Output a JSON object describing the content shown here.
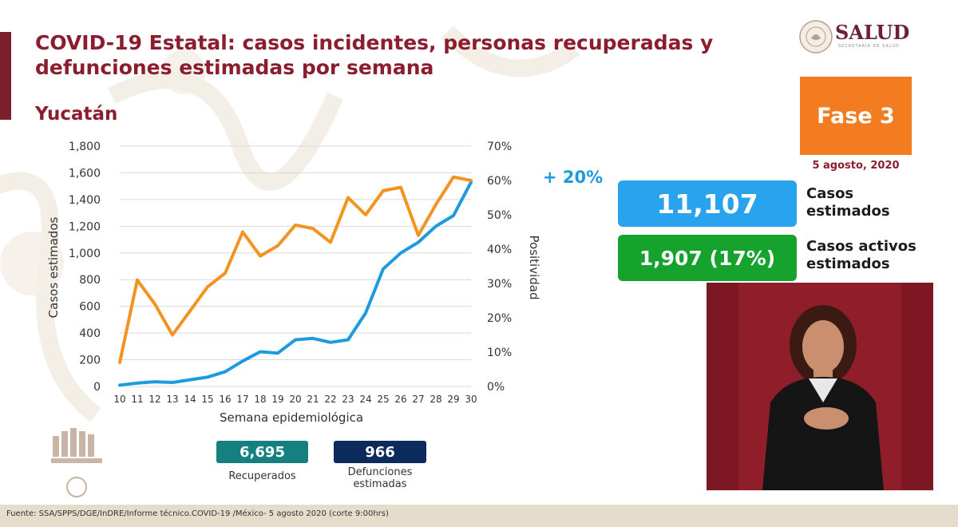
{
  "header": {
    "title": "COVID-19 Estatal: casos incidentes, personas recuperadas y defunciones estimadas por semana",
    "state": "Yucatán"
  },
  "logo": {
    "text": "SALUD",
    "subtext": "SECRETARÍA DE SALUD"
  },
  "phase": {
    "label": "Fase 3",
    "date": "5 agosto, 2020"
  },
  "change": "+ 20%",
  "stats": {
    "casos_value": "11,107",
    "casos_label_1": "Casos",
    "casos_label_2": "estimados",
    "activos_value": "1,907 (17%)",
    "activos_label_1": "Casos activos",
    "activos_label_2": "estimados"
  },
  "chips": {
    "recuperados_value": "6,695",
    "recuperados_label": "Recuperados",
    "defunciones_value": "966",
    "defunciones_label_1": "Defunciones",
    "defunciones_label_2": "estimadas"
  },
  "footer": "Fuente: SSA/SPPS/DGE/InDRE/Informe técnico.COVID-19 /México- 5 agosto 2020 (corte 9:00hrs)",
  "colors": {
    "title": "#8b1e2e",
    "cases_line": "#1e9be0",
    "positivity_line": "#f39322",
    "phase": "#f47c20",
    "casos_box": "#29a3ee",
    "activos_box": "#15a32e",
    "recuperados_chip": "#14807f",
    "defunciones_chip": "#0d2a5c"
  },
  "chart_data": {
    "type": "line",
    "xlabel": "Semana epidemiológica",
    "ylabel": "Casos estimados",
    "y2label": "Positividad",
    "x": [
      10,
      11,
      12,
      13,
      14,
      15,
      16,
      17,
      18,
      19,
      20,
      21,
      22,
      23,
      24,
      25,
      26,
      27,
      28,
      29,
      30
    ],
    "ylim": [
      0,
      1800
    ],
    "yticks": [
      "0",
      "200",
      "400",
      "600",
      "800",
      "1,000",
      "1,200",
      "1,400",
      "1,600",
      "1,800"
    ],
    "y2lim": [
      0,
      70
    ],
    "y2ticks": [
      "0%",
      "10%",
      "20%",
      "30%",
      "40%",
      "50%",
      "60%",
      "70%"
    ],
    "grid": true,
    "series": [
      {
        "name": "",
        "axis": "left",
        "color": "#1e9be0",
        "values": [
          10,
          25,
          35,
          30,
          50,
          70,
          110,
          190,
          260,
          250,
          350,
          360,
          330,
          350,
          550,
          880,
          1000,
          1080,
          1200,
          1280,
          1530
        ]
      },
      {
        "name": "",
        "axis": "right",
        "color": "#f39322",
        "values": [
          7,
          31,
          24,
          15,
          22,
          29,
          33,
          45,
          38,
          41,
          47,
          46,
          42,
          55,
          50,
          57,
          58,
          44,
          53,
          61,
          60
        ]
      }
    ]
  }
}
